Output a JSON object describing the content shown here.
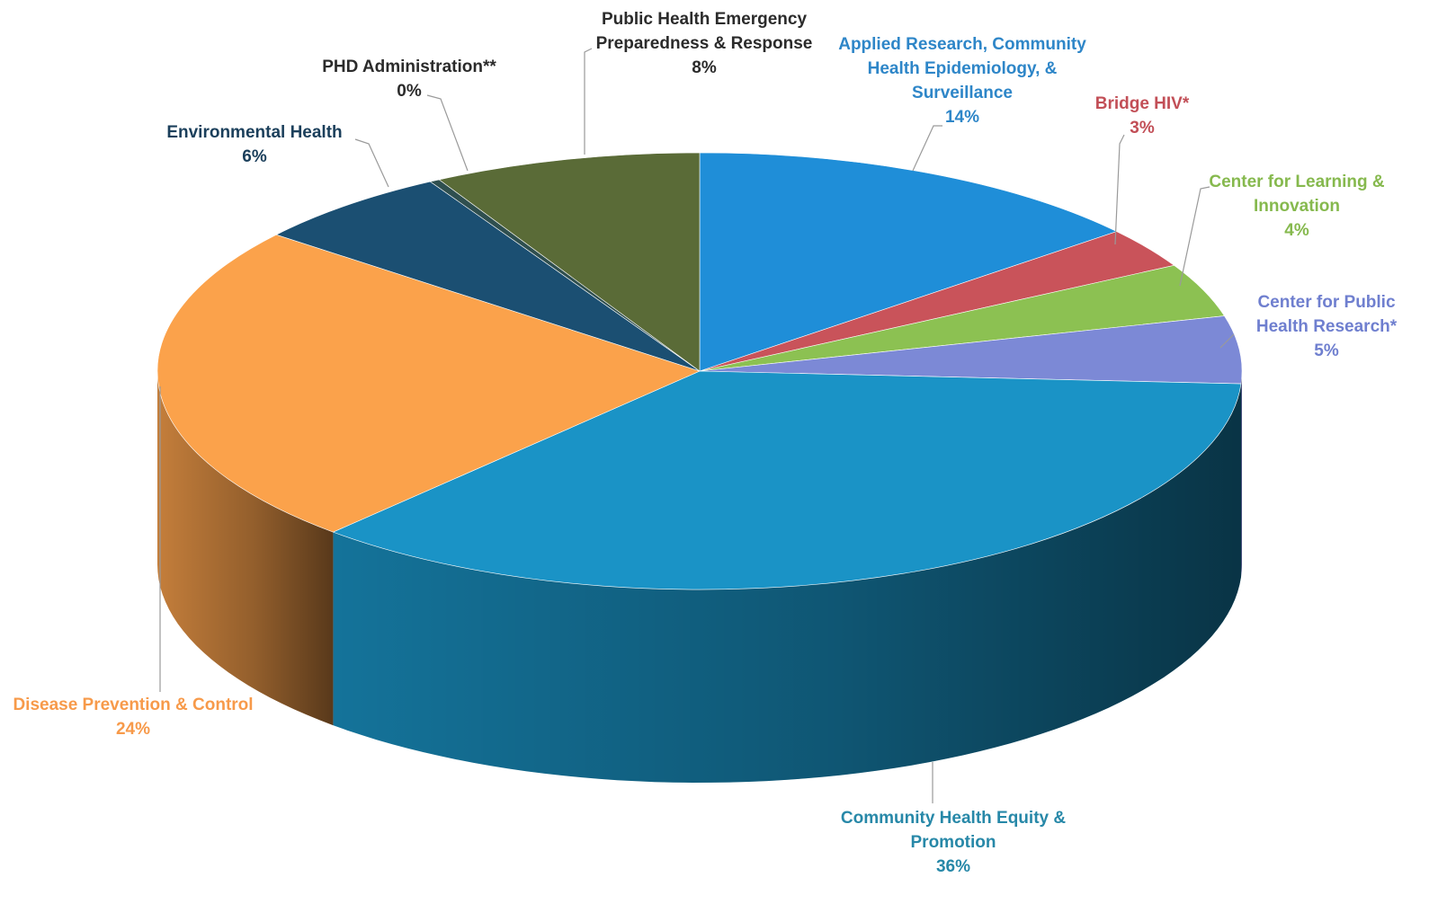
{
  "chart_data": {
    "type": "pie",
    "style": "3d",
    "title": "",
    "start_angle_deg": 0,
    "direction": "clockwise",
    "slices": [
      {
        "label_lines": [
          "Applied Research, Community",
          "Health Epidemiology, &",
          "Surveillance"
        ],
        "pct_text": "14%",
        "value": 14,
        "color": "#1F8ED8",
        "label_color": "#2E86C8"
      },
      {
        "label_lines": [
          "Bridge HIV*"
        ],
        "pct_text": "3%",
        "value": 3,
        "color": "#C9535A",
        "label_color": "#C24F57"
      },
      {
        "label_lines": [
          "Center for Learning &",
          "Innovation"
        ],
        "pct_text": "4%",
        "value": 4,
        "color": "#8CC152",
        "label_color": "#86B94E"
      },
      {
        "label_lines": [
          "Center for Public",
          "Health Research*"
        ],
        "pct_text": "5%",
        "value": 5,
        "color": "#7C89D6",
        "label_color": "#6F7FCF"
      },
      {
        "label_lines": [
          "Community Health  Equity &",
          "Promotion"
        ],
        "pct_text": "36%",
        "value": 36,
        "color": "#1A93C6",
        "label_color": "#2788A8"
      },
      {
        "label_lines": [
          "Disease Prevention & Control"
        ],
        "pct_text": "24%",
        "value": 24,
        "color": "#FBA24B",
        "label_color": "#F79A4A"
      },
      {
        "label_lines": [
          "Environmental Health"
        ],
        "pct_text": "6%",
        "value": 6,
        "color": "#1B4F72",
        "label_color": "#1B3F5B"
      },
      {
        "label_lines": [
          "PHD Administration**"
        ],
        "pct_text": "0%",
        "value": 0.3,
        "color": "#2F4F4F",
        "label_color": "#2B2B2B"
      },
      {
        "label_lines": [
          "Public Health Emergency",
          "Preparedness & Response"
        ],
        "pct_text": "8%",
        "value": 8,
        "color": "#5A6B37",
        "label_color": "#2B2B2B"
      }
    ]
  }
}
